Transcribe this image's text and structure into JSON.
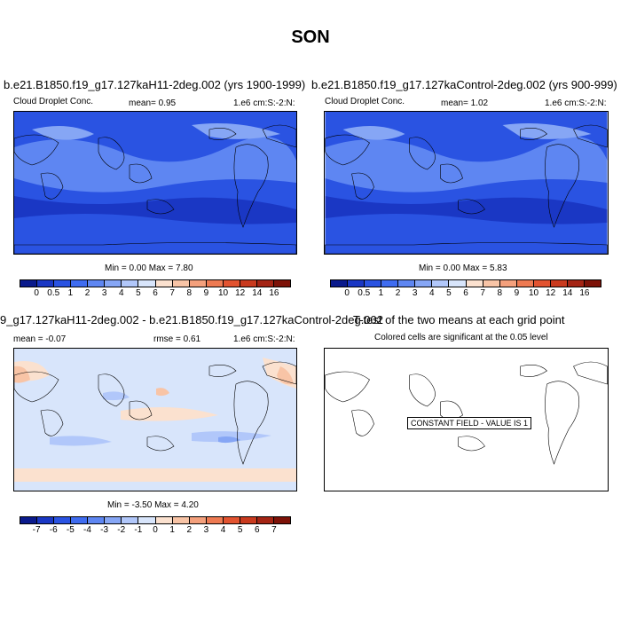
{
  "title": "SON",
  "panels": [
    {
      "title": "b.e21.B1850.f19_g17.127kaH11-2deg.002 (yrs 1900-1999)",
      "left_label": "Cloud Droplet Conc.",
      "mean_text": "mean=   0.95",
      "units": "1.e6 cm:S:-2:N:",
      "minmax": "Min =   0.00 Max =   7.80"
    },
    {
      "title": "b.e21.B1850.f19_g17.127kaControl-2deg.002 (yrs 900-999)",
      "left_label": "Cloud Droplet Conc.",
      "mean_text": "mean=   1.02",
      "units": "1.e6 cm:S:-2:N:",
      "minmax": "Min =   0.00 Max =   5.83"
    },
    {
      "title": "9_g17.127kaH11-2deg.002 - b.e21.B1850.f19_g17.127kaControl-2deg.002",
      "left_label": "mean =  -0.07",
      "mean_text": "rmse =   0.61",
      "units": "1.e6 cm:S:-2:N:",
      "minmax": "Min =  -3.50 Max =   4.20"
    },
    {
      "title": "T-test of the two means at each grid point",
      "subtitle": "Colored cells are significant at the 0.05 level",
      "constant_label": "CONSTANT FIELD - VALUE IS 1"
    }
  ],
  "colorbar_abs": {
    "colors": [
      "#0a1a8c",
      "#1a37c4",
      "#2a53e2",
      "#3f6cf0",
      "#5e86f2",
      "#86a6f5",
      "#b1c7fa",
      "#d8e5fb",
      "#fbe1cf",
      "#f8c4a6",
      "#f4a07c",
      "#ee7a52",
      "#e25330",
      "#c93a1e",
      "#a42414",
      "#7d1208"
    ],
    "labels": [
      "0",
      "0.5",
      "1",
      "2",
      "3",
      "4",
      "5",
      "6",
      "7",
      "8",
      "9",
      "10",
      "12",
      "14",
      "16"
    ]
  },
  "colorbar_diff": {
    "colors": [
      "#0a1a8c",
      "#1a37c4",
      "#2a53e2",
      "#3f6cf0",
      "#5e86f2",
      "#86a6f5",
      "#b1c7fa",
      "#d8e5fb",
      "#fbe1cf",
      "#f8c4a6",
      "#f4a07c",
      "#ee7a52",
      "#e25330",
      "#c93a1e",
      "#a42414",
      "#7d1208"
    ],
    "labels": [
      "-7",
      "-6",
      "-5",
      "-4",
      "-3",
      "-2",
      "-1",
      "0",
      "1",
      "2",
      "3",
      "4",
      "5",
      "6",
      "7"
    ]
  },
  "map_colors": {
    "abs_base": "#2a53e2",
    "abs_dark": "#1a37c4",
    "abs_light": "#5e86f2",
    "abs_lighter": "#86a6f5",
    "diff_base": "#d8e5fb",
    "diff_warm": "#fbe1cf",
    "diff_warm2": "#f8c4a6",
    "diff_cool": "#b1c7fa",
    "diff_cool2": "#86a6f5"
  }
}
